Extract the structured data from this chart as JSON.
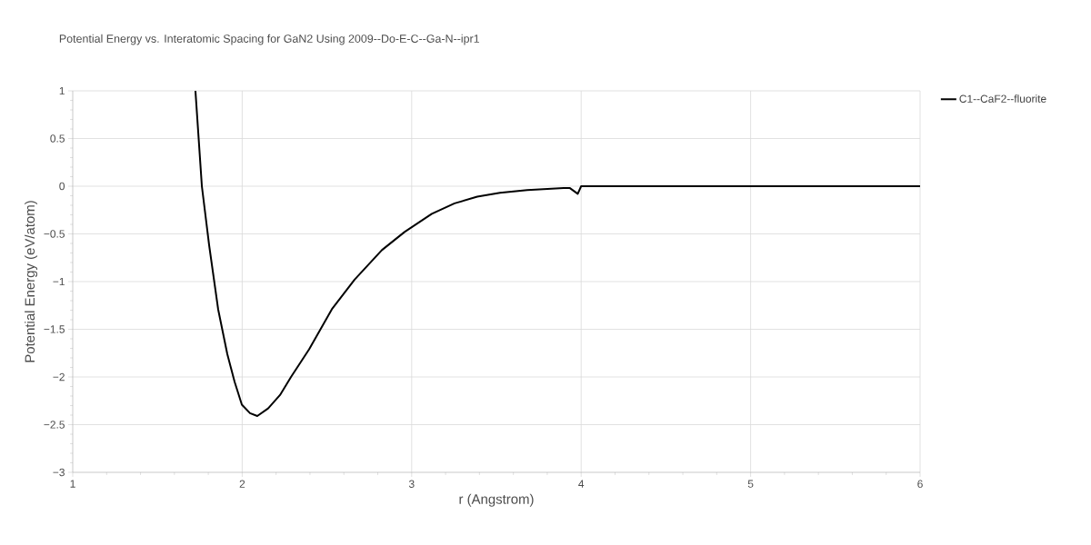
{
  "chart_data": {
    "type": "line",
    "title": "Potential Energy vs. Interatomic Spacing for GaN2 Using 2009--Do-E-C--Ga-N--ipr1",
    "xlabel": "r (Angstrom)",
    "ylabel": "Potential Energy (eV/atom)",
    "xlim": [
      1,
      6
    ],
    "ylim": [
      -3,
      1
    ],
    "xticks": [
      1,
      2,
      3,
      4,
      5,
      6
    ],
    "yticks": [
      {
        "value": -3,
        "label": "−3"
      },
      {
        "value": -2.5,
        "label": "−2.5"
      },
      {
        "value": -2,
        "label": "−2"
      },
      {
        "value": -1.5,
        "label": "−1.5"
      },
      {
        "value": -1,
        "label": "−1"
      },
      {
        "value": -0.5,
        "label": "−0.5"
      },
      0,
      0.5,
      1
    ],
    "grid": true,
    "legend": "top right",
    "marker": "none",
    "line_style": "solid",
    "series": [
      {
        "name": "C1--CaF2--fluorite",
        "color": "#000000",
        "x": [
          1.724,
          1.762,
          1.805,
          1.858,
          1.912,
          1.955,
          1.998,
          2.046,
          2.089,
          2.153,
          2.223,
          2.288,
          2.395,
          2.529,
          2.663,
          2.824,
          2.958,
          3.119,
          3.253,
          3.387,
          3.521,
          3.682,
          3.897,
          3.934,
          3.98,
          4.0,
          6.0
        ],
        "values": [
          1.0,
          0,
          -0.62,
          -1.29,
          -1.76,
          -2.05,
          -2.29,
          -2.38,
          -2.41,
          -2.33,
          -2.19,
          -2.0,
          -1.71,
          -1.29,
          -0.98,
          -0.67,
          -0.48,
          -0.29,
          -0.18,
          -0.11,
          -0.07,
          -0.04,
          -0.02,
          -0.02,
          -0.08,
          0,
          0
        ]
      }
    ]
  }
}
